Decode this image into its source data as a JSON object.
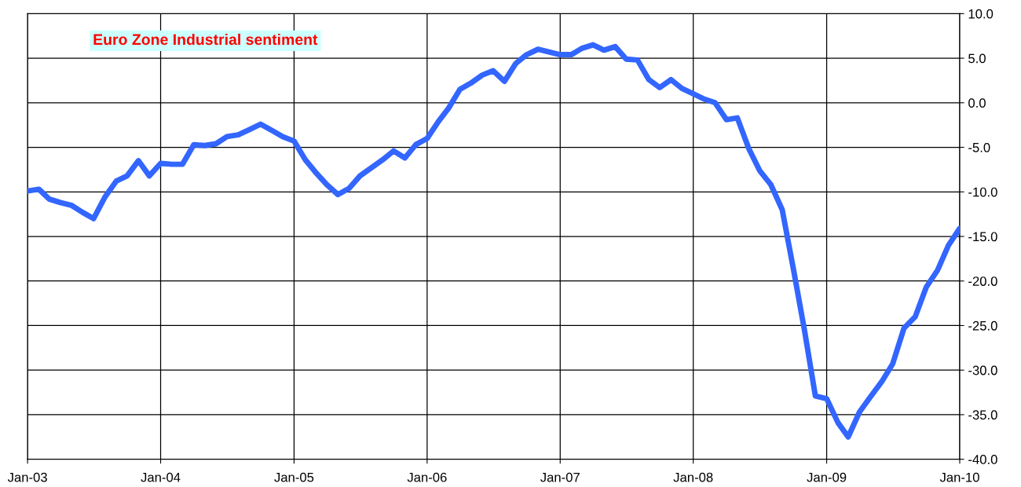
{
  "chart_data": {
    "type": "line",
    "title": "Euro Zone Industrial sentiment",
    "x": [
      "2003-01",
      "2003-02",
      "2003-03",
      "2003-04",
      "2003-05",
      "2003-06",
      "2003-07",
      "2003-08",
      "2003-09",
      "2003-10",
      "2003-11",
      "2003-12",
      "2004-01",
      "2004-02",
      "2004-03",
      "2004-04",
      "2004-05",
      "2004-06",
      "2004-07",
      "2004-08",
      "2004-09",
      "2004-10",
      "2004-11",
      "2004-12",
      "2005-01",
      "2005-02",
      "2005-03",
      "2005-04",
      "2005-05",
      "2005-06",
      "2005-07",
      "2005-08",
      "2005-09",
      "2005-10",
      "2005-11",
      "2005-12",
      "2006-01",
      "2006-02",
      "2006-03",
      "2006-04",
      "2006-05",
      "2006-06",
      "2006-07",
      "2006-08",
      "2006-09",
      "2006-10",
      "2006-11",
      "2006-12",
      "2007-01",
      "2007-02",
      "2007-03",
      "2007-04",
      "2007-05",
      "2007-06",
      "2007-07",
      "2007-08",
      "2007-09",
      "2007-10",
      "2007-11",
      "2007-12",
      "2008-01",
      "2008-02",
      "2008-03",
      "2008-04",
      "2008-05",
      "2008-06",
      "2008-07",
      "2008-08",
      "2008-09",
      "2008-10",
      "2008-11",
      "2008-12",
      "2009-01",
      "2009-02",
      "2009-03",
      "2009-04",
      "2009-05",
      "2009-06",
      "2009-07",
      "2009-08",
      "2009-09",
      "2009-10",
      "2009-11",
      "2009-12",
      "2010-01"
    ],
    "series": [
      {
        "color": "#3366ff",
        "values": [
          -9.9,
          -9.7,
          -10.8,
          -11.2,
          -11.5,
          -12.3,
          -13.0,
          -10.6,
          -8.8,
          -8.2,
          -6.5,
          -8.2,
          -6.8,
          -6.9,
          -6.9,
          -4.7,
          -4.8,
          -4.6,
          -3.8,
          -3.6,
          -3.0,
          -2.4,
          -3.1,
          -3.8,
          -4.3,
          -6.4,
          -7.8,
          -9.2,
          -10.3,
          -9.6,
          -8.2,
          -7.3,
          -6.4,
          -5.4,
          -6.2,
          -4.7,
          -4.0,
          -2.1,
          -0.6,
          1.5,
          2.2,
          3.1,
          3.6,
          2.4,
          4.4,
          5.4,
          6.0,
          5.7,
          5.4,
          5.4,
          6.1,
          6.5,
          5.9,
          6.3,
          4.9,
          4.8,
          2.6,
          1.7,
          2.6,
          1.6,
          1.0,
          0.4,
          0.0,
          -1.9,
          -1.7,
          -5.1,
          -7.6,
          -9.2,
          -12.0,
          -18.5,
          -25.5,
          -32.9,
          -33.2,
          -35.9,
          -37.5,
          -34.7,
          -33.0,
          -31.3,
          -29.3,
          -25.3,
          -24.0,
          -20.7,
          -18.8,
          -16.0,
          -14.1
        ]
      }
    ],
    "xlim": [
      "2003-01",
      "2010-01"
    ],
    "xticks": [
      {
        "value": "2003-01",
        "label": "Jan-03"
      },
      {
        "value": "2004-01",
        "label": "Jan-04"
      },
      {
        "value": "2005-01",
        "label": "Jan-05"
      },
      {
        "value": "2006-01",
        "label": "Jan-06"
      },
      {
        "value": "2007-01",
        "label": "Jan-07"
      },
      {
        "value": "2008-01",
        "label": "Jan-08"
      },
      {
        "value": "2009-01",
        "label": "Jan-09"
      },
      {
        "value": "2010-01",
        "label": "Jan-10"
      }
    ],
    "ylim": [
      -40,
      10
    ],
    "yticks": [
      {
        "value": 10,
        "label": "10.0"
      },
      {
        "value": 5,
        "label": "5.0"
      },
      {
        "value": 0,
        "label": "0.0"
      },
      {
        "value": -5,
        "label": "-5.0"
      },
      {
        "value": -10,
        "label": "-10.0"
      },
      {
        "value": -15,
        "label": "-15.0"
      },
      {
        "value": -20,
        "label": "-20.0"
      },
      {
        "value": -25,
        "label": "-25.0"
      },
      {
        "value": -30,
        "label": "-30.0"
      },
      {
        "value": -35,
        "label": "-35.0"
      },
      {
        "value": -40,
        "label": "-40.0"
      }
    ],
    "grid": true,
    "line_style": "solid",
    "marker": "none"
  }
}
